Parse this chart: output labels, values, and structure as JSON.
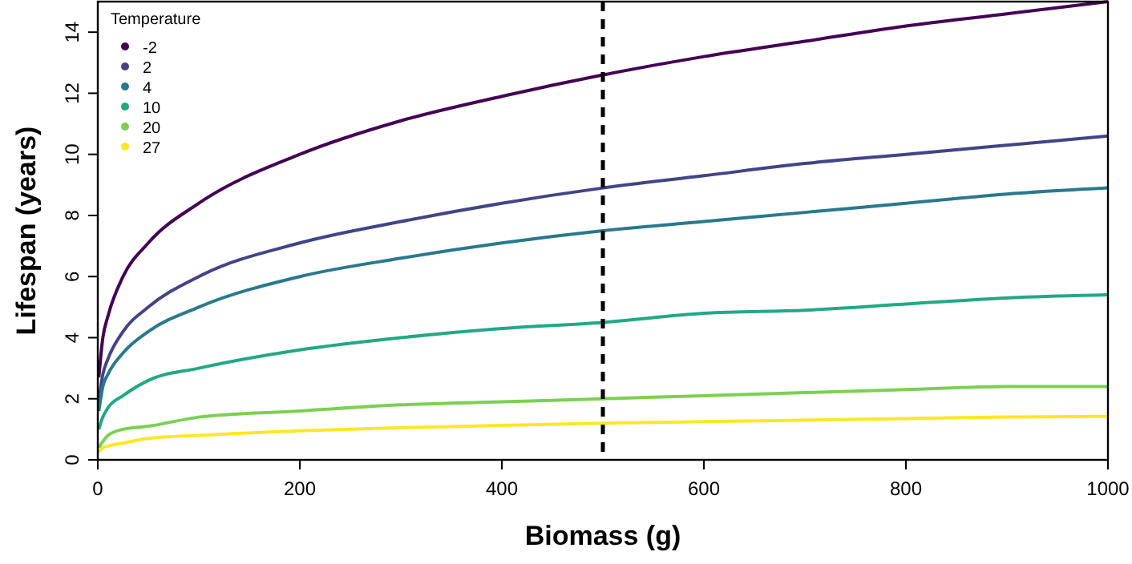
{
  "chart_data": {
    "type": "line",
    "xlabel": "Biomass (g)",
    "ylabel": "Lifespan (years)",
    "legend_title": "Temperature",
    "legend": "top left",
    "grid": false,
    "x": [
      1,
      5,
      10,
      25,
      50,
      100,
      200,
      300,
      400,
      500,
      600,
      700,
      800,
      900,
      1000
    ],
    "xlim": [
      0,
      1000
    ],
    "xticks": [
      0,
      200,
      400,
      600,
      800,
      1000
    ],
    "ylim": [
      0,
      15
    ],
    "yticks": [
      0,
      2,
      4,
      6,
      8,
      10,
      12,
      14
    ],
    "ref_lines": [
      {
        "axis": "x",
        "value": 500,
        "color": "#000000",
        "line_style": "dashed"
      }
    ],
    "series": [
      {
        "name": "-2",
        "color": "#440154",
        "values": [
          2.7,
          4.0,
          4.7,
          6.0,
          7.1,
          8.4,
          10.0,
          11.1,
          11.9,
          12.6,
          13.2,
          13.7,
          14.2,
          14.6,
          15.0
        ]
      },
      {
        "name": "2",
        "color": "#414487",
        "values": [
          1.9,
          2.8,
          3.3,
          4.2,
          5.0,
          6.0,
          7.1,
          7.8,
          8.4,
          8.9,
          9.3,
          9.7,
          10.0,
          10.3,
          10.6
        ]
      },
      {
        "name": "4",
        "color": "#2a788e",
        "values": [
          1.6,
          2.4,
          2.8,
          3.5,
          4.2,
          5.0,
          6.0,
          6.6,
          7.1,
          7.5,
          7.8,
          8.1,
          8.4,
          8.7,
          8.9
        ]
      },
      {
        "name": "10",
        "color": "#22a884",
        "values": [
          1.0,
          1.4,
          1.7,
          2.1,
          2.6,
          3.0,
          3.6,
          4.0,
          4.3,
          4.5,
          4.8,
          4.9,
          5.1,
          5.3,
          5.4
        ]
      },
      {
        "name": "20",
        "color": "#7ad151",
        "values": [
          0.4,
          0.6,
          0.8,
          1.0,
          1.1,
          1.4,
          1.6,
          1.8,
          1.9,
          2.0,
          2.1,
          2.2,
          2.3,
          2.4,
          2.4
        ]
      },
      {
        "name": "27",
        "color": "#fde725",
        "values": [
          0.25,
          0.4,
          0.45,
          0.55,
          0.7,
          0.8,
          0.95,
          1.05,
          1.13,
          1.2,
          1.25,
          1.3,
          1.35,
          1.4,
          1.42
        ]
      }
    ]
  }
}
